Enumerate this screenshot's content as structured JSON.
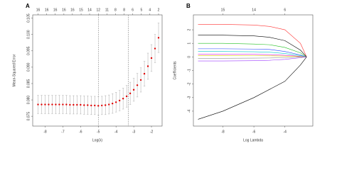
{
  "chart_data": [
    {
      "type": "errorbar",
      "panel_label": "A",
      "xlabel": "Log(λ)",
      "ylabel": "Mean-Squared Error",
      "x": [
        -8.4,
        -8.2,
        -8.0,
        -7.8,
        -7.6,
        -7.4,
        -7.2,
        -7.0,
        -6.8,
        -6.6,
        -6.4,
        -6.2,
        -6.0,
        -5.8,
        -5.6,
        -5.4,
        -5.2,
        -5.0,
        -4.8,
        -4.6,
        -4.4,
        -4.2,
        -4.0,
        -3.8,
        -3.6,
        -3.4,
        -3.2,
        -3.0,
        -2.8,
        -2.6,
        -2.4,
        -2.2,
        -2.0,
        -1.8,
        -1.6
      ],
      "values": [
        0.0786,
        0.0786,
        0.0786,
        0.0786,
        0.0786,
        0.0786,
        0.0786,
        0.0786,
        0.0786,
        0.0785,
        0.0785,
        0.0785,
        0.0785,
        0.0784,
        0.0784,
        0.0783,
        0.0783,
        0.0782,
        0.0783,
        0.0784,
        0.0786,
        0.0789,
        0.0793,
        0.0798,
        0.0804,
        0.0811,
        0.082,
        0.0831,
        0.0845,
        0.0861,
        0.088,
        0.0903,
        0.0928,
        0.0957,
        0.099
      ],
      "errors": [
        0.0028,
        0.0028,
        0.0028,
        0.0028,
        0.0028,
        0.0028,
        0.0028,
        0.0028,
        0.0028,
        0.0028,
        0.0028,
        0.0028,
        0.0028,
        0.0028,
        0.0028,
        0.0028,
        0.0028,
        0.0028,
        0.0028,
        0.0029,
        0.0029,
        0.003,
        0.003,
        0.0031,
        0.0032,
        0.0033,
        0.0034,
        0.0035,
        0.0036,
        0.0037,
        0.0038,
        0.004,
        0.0041,
        0.0043,
        0.0045
      ],
      "color": "#e00000",
      "vlines": [
        -5.0,
        -3.3
      ],
      "xlim": [
        -8.7,
        -1.4
      ],
      "xticks": [
        -8,
        -7,
        -6,
        -5,
        -4,
        -3,
        -2
      ],
      "ylim": [
        0.072,
        0.106
      ],
      "yticks": [
        {
          "value": 0.075,
          "label": "0.075"
        },
        {
          "value": 0.08,
          "label": "0.080"
        },
        {
          "value": 0.085,
          "label": "0.085"
        },
        {
          "value": 0.09,
          "label": "0.090"
        },
        {
          "value": 0.095,
          "label": "0.095"
        },
        {
          "value": 0.1,
          "label": "0.100"
        },
        {
          "value": 0.105,
          "label": "0.105"
        }
      ],
      "top_ticks": [
        {
          "value": -8.4,
          "label": "16"
        },
        {
          "value": -7.91,
          "label": "16"
        },
        {
          "value": -7.43,
          "label": "16"
        },
        {
          "value": -6.94,
          "label": "16"
        },
        {
          "value": -6.46,
          "label": "16"
        },
        {
          "value": -5.97,
          "label": "15"
        },
        {
          "value": -5.49,
          "label": "14"
        },
        {
          "value": -5.0,
          "label": "12"
        },
        {
          "value": -4.51,
          "label": "11"
        },
        {
          "value": -4.03,
          "label": "8"
        },
        {
          "value": -3.54,
          "label": "8"
        },
        {
          "value": -3.06,
          "label": "6"
        },
        {
          "value": -2.57,
          "label": "5"
        },
        {
          "value": -2.09,
          "label": "4"
        },
        {
          "value": -1.6,
          "label": "2"
        }
      ]
    },
    {
      "type": "line",
      "panel_label": "B",
      "xlabel": "Log Lambda",
      "ylabel": "Coefficients",
      "x": [
        -9.6,
        -8,
        -6,
        -5,
        -4,
        -3,
        -2.6
      ],
      "series": [
        {
          "color": "#ff3030",
          "values": [
            2.4,
            2.4,
            2.35,
            2.25,
            2.0,
            1.0,
            0
          ]
        },
        {
          "color": "#000000",
          "values": [
            1.6,
            1.6,
            1.55,
            1.45,
            1.2,
            0.5,
            0
          ]
        },
        {
          "color": "#20c020",
          "values": [
            1.0,
            1.0,
            0.95,
            0.9,
            0.7,
            0.3,
            0
          ]
        },
        {
          "color": "#2040ff",
          "values": [
            0.6,
            0.6,
            0.58,
            0.55,
            0.4,
            0.15,
            0
          ]
        },
        {
          "color": "#00c8c8",
          "values": [
            0.4,
            0.4,
            0.38,
            0.35,
            0.25,
            0.1,
            0
          ]
        },
        {
          "color": "#e020e0",
          "values": [
            0.2,
            0.2,
            0.19,
            0.17,
            0.12,
            0.05,
            0
          ]
        },
        {
          "color": "#d8c800",
          "values": [
            0.1,
            0.1,
            0.09,
            0.08,
            0.06,
            0.02,
            0
          ]
        },
        {
          "color": "#909090",
          "values": [
            -0.1,
            -0.1,
            -0.09,
            -0.08,
            -0.06,
            -0.02,
            0
          ]
        },
        {
          "color": "#a040ff",
          "values": [
            -0.3,
            -0.3,
            -0.28,
            -0.25,
            -0.18,
            -0.06,
            0
          ]
        },
        {
          "color": "#000000",
          "values": [
            -4.6,
            -4.0,
            -3.0,
            -2.4,
            -1.8,
            -0.6,
            0
          ]
        }
      ],
      "xlim": [
        -9.9,
        -2.2
      ],
      "xticks": [
        -8,
        -6,
        -4
      ],
      "ylim": [
        -5.1,
        3.1
      ],
      "yticks": [
        -4,
        -3,
        -2,
        -1,
        0,
        1,
        2
      ],
      "top_ticks": [
        {
          "value": -8,
          "label": "15"
        },
        {
          "value": -6,
          "label": "14"
        },
        {
          "value": -4,
          "label": "6"
        }
      ]
    }
  ]
}
